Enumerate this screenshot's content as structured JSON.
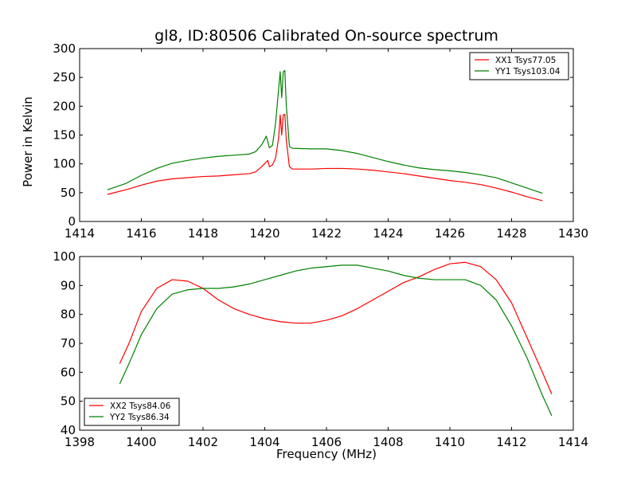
{
  "chart_data": [
    {
      "type": "line",
      "title": "gl8, ID:80506 Calibrated On-source spectrum",
      "xlabel": "",
      "ylabel": "Power in Kelvin",
      "xlim": [
        1414,
        1430
      ],
      "ylim": [
        0,
        300
      ],
      "xticks": [
        "1414",
        "1416",
        "1418",
        "1420",
        "1422",
        "1424",
        "1426",
        "1428",
        "1430"
      ],
      "yticks": [
        "0",
        "50",
        "100",
        "150",
        "200",
        "250",
        "300"
      ],
      "legend_position": "top-right",
      "series": [
        {
          "name": "XX1 Tsys77.05",
          "color": "#ff0000",
          "points": [
            [
              1414.9,
              47
            ],
            [
              1415.5,
              55
            ],
            [
              1416,
              63
            ],
            [
              1416.5,
              70
            ],
            [
              1417,
              74
            ],
            [
              1417.5,
              76
            ],
            [
              1418,
              78
            ],
            [
              1418.5,
              79
            ],
            [
              1419,
              81
            ],
            [
              1419.5,
              83
            ],
            [
              1419.7,
              86
            ],
            [
              1419.9,
              95
            ],
            [
              1420.1,
              106
            ],
            [
              1420.15,
              95
            ],
            [
              1420.25,
              98
            ],
            [
              1420.35,
              110
            ],
            [
              1420.45,
              145
            ],
            [
              1420.5,
              185
            ],
            [
              1420.55,
              150
            ],
            [
              1420.6,
              185
            ],
            [
              1420.65,
              186
            ],
            [
              1420.7,
              140
            ],
            [
              1420.8,
              95
            ],
            [
              1420.9,
              91
            ],
            [
              1421.5,
              91
            ],
            [
              1422,
              92
            ],
            [
              1422.5,
              92
            ],
            [
              1423,
              91
            ],
            [
              1423.5,
              89
            ],
            [
              1424,
              86
            ],
            [
              1424.5,
              83
            ],
            [
              1425,
              79
            ],
            [
              1425.5,
              75
            ],
            [
              1426,
              71
            ],
            [
              1426.5,
              68
            ],
            [
              1427,
              64
            ],
            [
              1427.5,
              58
            ],
            [
              1428,
              51
            ],
            [
              1428.5,
              43
            ],
            [
              1429,
              36
            ]
          ]
        },
        {
          "name": "YY1 Tsys103.04",
          "color": "#008000",
          "points": [
            [
              1414.9,
              55
            ],
            [
              1415.5,
              66
            ],
            [
              1416,
              80
            ],
            [
              1416.5,
              92
            ],
            [
              1417,
              101
            ],
            [
              1417.5,
              106
            ],
            [
              1418,
              110
            ],
            [
              1418.5,
              113
            ],
            [
              1419,
              115
            ],
            [
              1419.5,
              117
            ],
            [
              1419.7,
              121
            ],
            [
              1419.9,
              133
            ],
            [
              1420.05,
              148
            ],
            [
              1420.15,
              128
            ],
            [
              1420.25,
              132
            ],
            [
              1420.35,
              170
            ],
            [
              1420.45,
              230
            ],
            [
              1420.5,
              260
            ],
            [
              1420.55,
              215
            ],
            [
              1420.6,
              260
            ],
            [
              1420.65,
              262
            ],
            [
              1420.7,
              200
            ],
            [
              1420.8,
              130
            ],
            [
              1420.9,
              127
            ],
            [
              1421.5,
              126
            ],
            [
              1422,
              126
            ],
            [
              1422.5,
              123
            ],
            [
              1423,
              118
            ],
            [
              1423.5,
              111
            ],
            [
              1424,
              104
            ],
            [
              1424.5,
              98
            ],
            [
              1425,
              93
            ],
            [
              1425.5,
              90
            ],
            [
              1426,
              88
            ],
            [
              1426.5,
              85
            ],
            [
              1427,
              81
            ],
            [
              1427.5,
              76
            ],
            [
              1428,
              67
            ],
            [
              1428.5,
              58
            ],
            [
              1429,
              49
            ]
          ]
        }
      ]
    },
    {
      "type": "line",
      "title": "",
      "xlabel": "Frequency (MHz)",
      "ylabel": "",
      "xlim": [
        1398,
        1414
      ],
      "ylim": [
        40,
        100
      ],
      "xticks": [
        "1398",
        "1400",
        "1402",
        "1404",
        "1406",
        "1408",
        "1410",
        "1412",
        "1414"
      ],
      "yticks": [
        "40",
        "50",
        "60",
        "70",
        "80",
        "90",
        "100"
      ],
      "legend_position": "bottom-left",
      "series": [
        {
          "name": "XX2 Tsys84.06",
          "color": "#ff0000",
          "points": [
            [
              1399.3,
              63
            ],
            [
              1399.6,
              70
            ],
            [
              1400,
              81
            ],
            [
              1400.5,
              89
            ],
            [
              1401,
              92
            ],
            [
              1401.5,
              91.5
            ],
            [
              1402,
              89
            ],
            [
              1402.5,
              85
            ],
            [
              1403,
              82
            ],
            [
              1403.5,
              80
            ],
            [
              1404,
              78.5
            ],
            [
              1404.5,
              77.5
            ],
            [
              1405,
              77
            ],
            [
              1405.5,
              77
            ],
            [
              1406,
              78
            ],
            [
              1406.5,
              79.5
            ],
            [
              1407,
              82
            ],
            [
              1407.5,
              85
            ],
            [
              1408,
              88
            ],
            [
              1408.5,
              91
            ],
            [
              1409,
              93
            ],
            [
              1409.5,
              95.5
            ],
            [
              1410,
              97.5
            ],
            [
              1410.5,
              98
            ],
            [
              1411,
              96.5
            ],
            [
              1411.5,
              92
            ],
            [
              1412,
              84
            ],
            [
              1412.5,
              72
            ],
            [
              1413,
              60
            ],
            [
              1413.3,
              52.5
            ]
          ]
        },
        {
          "name": "YY2 Tsys86.34",
          "color": "#008000",
          "points": [
            [
              1399.3,
              56
            ],
            [
              1399.6,
              63
            ],
            [
              1400,
              73
            ],
            [
              1400.5,
              82
            ],
            [
              1401,
              87
            ],
            [
              1401.5,
              88.5
            ],
            [
              1402,
              89
            ],
            [
              1402.5,
              89
            ],
            [
              1403,
              89.5
            ],
            [
              1403.5,
              90.5
            ],
            [
              1404,
              92
            ],
            [
              1404.5,
              93.5
            ],
            [
              1405,
              95
            ],
            [
              1405.5,
              96
            ],
            [
              1406,
              96.5
            ],
            [
              1406.5,
              97
            ],
            [
              1407,
              97
            ],
            [
              1407.5,
              96
            ],
            [
              1408,
              95
            ],
            [
              1408.5,
              93.5
            ],
            [
              1409,
              92.5
            ],
            [
              1409.5,
              92
            ],
            [
              1410,
              92
            ],
            [
              1410.5,
              92
            ],
            [
              1411,
              90
            ],
            [
              1411.5,
              85
            ],
            [
              1412,
              76
            ],
            [
              1412.5,
              65
            ],
            [
              1413,
              52
            ],
            [
              1413.3,
              45
            ]
          ]
        }
      ]
    }
  ]
}
